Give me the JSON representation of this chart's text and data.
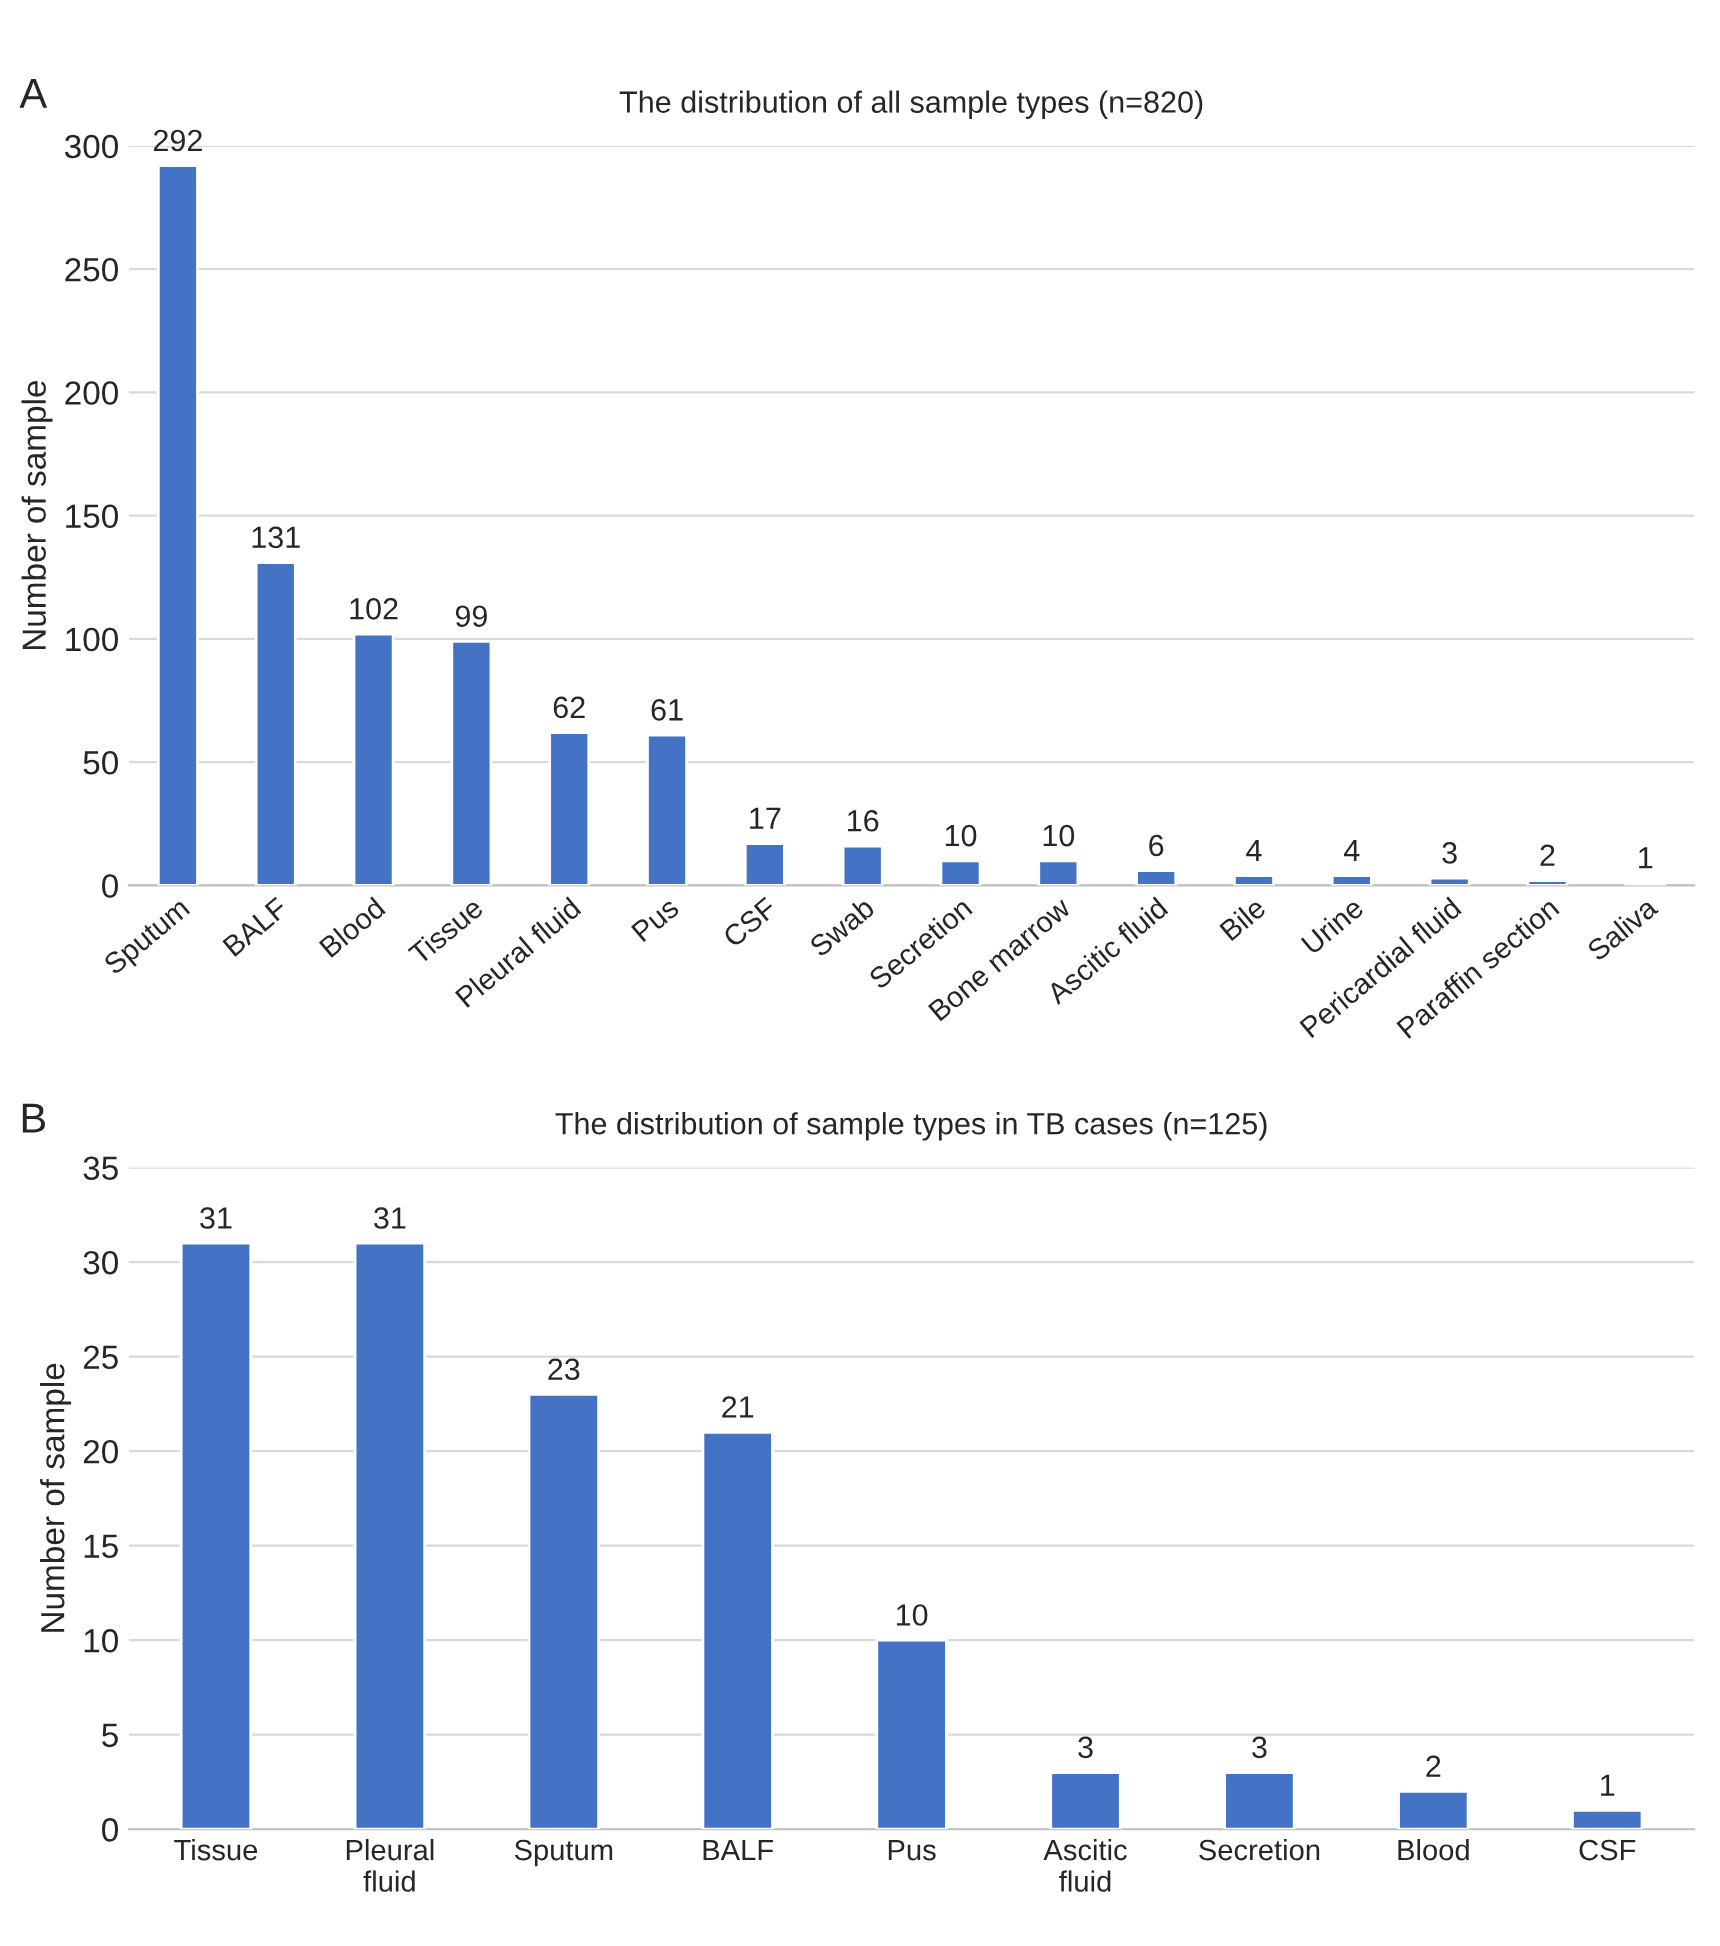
{
  "chart_data": [
    {
      "type": "bar",
      "title": "The distribution of all sample types (n=820)",
      "ylabel": "Number of sample",
      "annotations": [
        "A"
      ],
      "categories": [
        "Sputum",
        "BALF",
        "Blood",
        "Tissue",
        "Pleural fluid",
        "Pus",
        "CSF",
        "Swab",
        "Secretion",
        "Bone marrow",
        "Ascitic fluid",
        "Bile",
        "Urine",
        "Pericardial fluid",
        "Paraffin section",
        "Saliva"
      ],
      "values": [
        292,
        131,
        102,
        99,
        62,
        61,
        17,
        16,
        10,
        10,
        6,
        4,
        4,
        3,
        2,
        1
      ],
      "color": "#4472c4",
      "ylim": [
        0,
        300
      ],
      "yticks": [
        0,
        50,
        100,
        150,
        200,
        250,
        300
      ],
      "grid": "y",
      "data_labels": true
    },
    {
      "type": "bar",
      "title": "The distribution of sample types in TB cases (n=125)",
      "ylabel": "Number of sample",
      "annotations": [
        "B"
      ],
      "categories": [
        "Tissue",
        "Pleural\nfluid",
        "Sputum",
        "BALF",
        "Pus",
        "Ascitic\nfluid",
        "Secretion",
        "Blood",
        "CSF"
      ],
      "values": [
        31,
        31,
        23,
        21,
        10,
        3,
        3,
        2,
        1
      ],
      "color": "#4472c4",
      "ylim": [
        0,
        35
      ],
      "yticks": [
        0,
        5,
        10,
        15,
        20,
        25,
        30,
        35
      ],
      "grid": "y",
      "data_labels": true
    }
  ]
}
